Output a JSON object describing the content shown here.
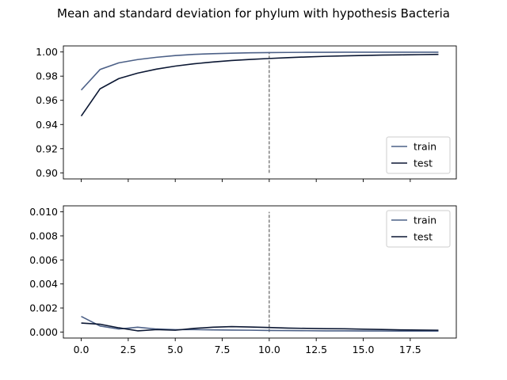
{
  "title": "Mean and standard deviation for phylum with hypothesis Bacteria",
  "colors": {
    "train": "#4c6087",
    "test": "#0b1733",
    "vline": "#444444"
  },
  "chart_data": [
    {
      "type": "line",
      "panel": "top",
      "xlim": [
        -0.95,
        19.95
      ],
      "ylim": [
        0.895,
        1.005
      ],
      "yticks": [
        0.9,
        0.92,
        0.94,
        0.96,
        0.98,
        1.0
      ],
      "ytick_labels": [
        "0.90",
        "0.92",
        "0.94",
        "0.96",
        "0.98",
        "1.00"
      ],
      "xticks": [
        0,
        2.5,
        5,
        7.5,
        10,
        12.5,
        15,
        17.5
      ],
      "xtick_labels": [],
      "vline": {
        "x": 10,
        "ymin": 0.9,
        "ymax": 1.0
      },
      "legend": "lower-right",
      "x": [
        0,
        1,
        2,
        3,
        4,
        5,
        6,
        7,
        8,
        9,
        10,
        11,
        12,
        13,
        14,
        15,
        16,
        17,
        18,
        19
      ],
      "series": [
        {
          "name": "train",
          "values": [
            0.9685,
            0.9855,
            0.991,
            0.9937,
            0.9956,
            0.997,
            0.998,
            0.9986,
            0.999,
            0.9993,
            0.9995,
            0.9996,
            0.9997,
            0.9997,
            0.9998,
            0.9998,
            0.9998,
            0.9998,
            0.9998,
            0.9998
          ]
        },
        {
          "name": "test",
          "values": [
            0.947,
            0.9695,
            0.978,
            0.9825,
            0.9858,
            0.9883,
            0.9902,
            0.9917,
            0.9929,
            0.9938,
            0.9946,
            0.9953,
            0.9959,
            0.9964,
            0.9968,
            0.9971,
            0.9974,
            0.9976,
            0.9978,
            0.998
          ]
        }
      ]
    },
    {
      "type": "line",
      "panel": "bottom",
      "xlim": [
        -0.95,
        19.95
      ],
      "ylim": [
        -0.0005,
        0.0105
      ],
      "yticks": [
        0.0,
        0.002,
        0.004,
        0.006,
        0.008,
        0.01
      ],
      "ytick_labels": [
        "0.000",
        "0.002",
        "0.004",
        "0.006",
        "0.008",
        "0.010"
      ],
      "xticks": [
        0,
        2.5,
        5,
        7.5,
        10,
        12.5,
        15,
        17.5
      ],
      "xtick_labels": [
        "0.0",
        "2.5",
        "5.0",
        "7.5",
        "10.0",
        "12.5",
        "15.0",
        "17.5"
      ],
      "vline": {
        "x": 10,
        "ymin": 0.0,
        "ymax": 0.01
      },
      "legend": "upper-right",
      "x": [
        0,
        1,
        2,
        3,
        4,
        5,
        6,
        7,
        8,
        9,
        10,
        11,
        12,
        13,
        14,
        15,
        16,
        17,
        18,
        19
      ],
      "series": [
        {
          "name": "train",
          "values": [
            0.0013,
            0.0005,
            0.00025,
            0.0004,
            0.00025,
            0.0002,
            0.0002,
            0.00018,
            0.00016,
            0.00015,
            0.00013,
            0.00012,
            0.00011,
            0.0001,
            0.0001,
            9e-05,
            9e-05,
            8e-05,
            8e-05,
            8e-05
          ]
        },
        {
          "name": "test",
          "values": [
            0.00075,
            0.00065,
            0.00035,
            0.0001,
            0.0002,
            0.00015,
            0.0003,
            0.0004,
            0.00045,
            0.00042,
            0.00038,
            0.00033,
            0.0003,
            0.00028,
            0.00027,
            0.00024,
            0.00021,
            0.00018,
            0.00016,
            0.00015
          ]
        }
      ]
    }
  ]
}
